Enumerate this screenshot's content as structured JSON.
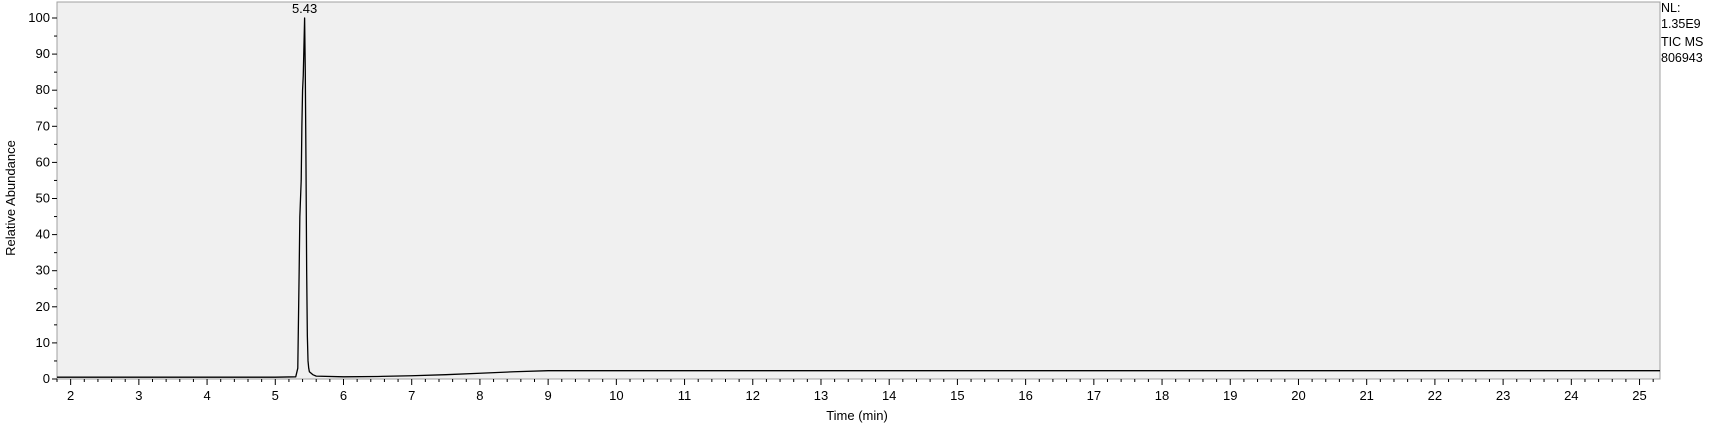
{
  "chart_data": {
    "type": "line",
    "xlabel": "Time (min)",
    "ylabel": "Relative Abundance",
    "xlim": [
      1.8,
      25.3
    ],
    "ylim": [
      0,
      100
    ],
    "x_ticks": [
      "2",
      "3",
      "4",
      "5",
      "6",
      "7",
      "8",
      "9",
      "10",
      "11",
      "12",
      "13",
      "14",
      "15",
      "16",
      "17",
      "18",
      "19",
      "20",
      "21",
      "22",
      "23",
      "24",
      "25"
    ],
    "y_ticks": [
      "0",
      "10",
      "20",
      "30",
      "40",
      "50",
      "60",
      "70",
      "80",
      "90",
      "100"
    ],
    "peak_annotation": {
      "label": "5.43",
      "x": 5.43,
      "y": 100
    },
    "series": [
      {
        "color": "#000000",
        "x": [
          1.8,
          5.0,
          5.3,
          5.33,
          5.35,
          5.36,
          5.37,
          5.38,
          5.39,
          5.4,
          5.41,
          5.42,
          5.43,
          5.44,
          5.45,
          5.46,
          5.47,
          5.48,
          5.49,
          5.5,
          5.55,
          5.6,
          6.0,
          6.5,
          7.0,
          7.5,
          8.0,
          8.5,
          9.0,
          9.5,
          10.0,
          12.0,
          15.0,
          20.0,
          25.3
        ],
        "y": [
          0.5,
          0.5,
          0.6,
          3,
          30,
          45,
          50,
          55,
          70,
          80,
          84,
          92,
          100,
          85,
          60,
          30,
          12,
          5,
          3,
          2,
          1.2,
          0.8,
          0.6,
          0.7,
          0.9,
          1.2,
          1.6,
          2.0,
          2.3,
          2.3,
          2.3,
          2.3,
          2.3,
          2.3,
          2.3
        ]
      }
    ]
  },
  "info": {
    "nl_label": "NL:",
    "nl_value": "1.35E9",
    "tic_label": "TIC  MS",
    "file_id": "806943"
  },
  "colors": {
    "plot_background": "#f0f0f0",
    "axis": "#000000",
    "trace": "#000000"
  }
}
